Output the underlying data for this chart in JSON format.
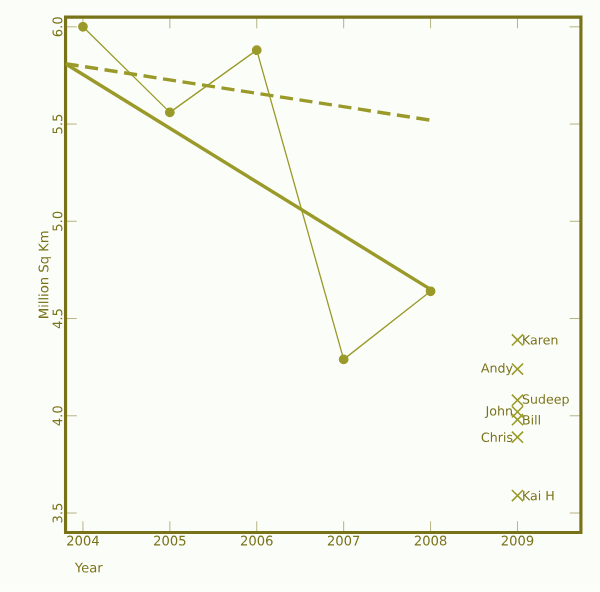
{
  "chart_data": {
    "type": "line",
    "xlabel": "Year",
    "ylabel": "Million Sq Km",
    "xlim": [
      2003.8,
      2009.73
    ],
    "ylim": [
      3.4,
      6.05
    ],
    "xticks": [
      2004,
      2005,
      2006,
      2007,
      2008,
      2009
    ],
    "yticks": [
      {
        "value": 3.5,
        "label": "3.5"
      },
      {
        "value": 4.0,
        "label": "4.0"
      },
      {
        "value": 4.5,
        "label": "4.5"
      },
      {
        "value": 5.0,
        "label": "5.0"
      },
      {
        "value": 5.5,
        "label": "5.5"
      },
      {
        "value": 6.0,
        "label": "6.0"
      }
    ],
    "grid": false,
    "legend": false,
    "series": [
      {
        "type": "line",
        "color": "#9a9a2a",
        "x": [
          2004,
          2005,
          2006,
          2007,
          2008
        ],
        "values": [
          6.0,
          5.56,
          5.88,
          4.29,
          4.64
        ],
        "marker": "circle",
        "line_style": "solid"
      },
      {
        "type": "line",
        "color": "#9a9a2a",
        "x": [
          2003.8,
          2008
        ],
        "values": [
          5.81,
          4.65
        ],
        "marker": "none",
        "line_style": "solid"
      },
      {
        "type": "line",
        "color": "#9a9a2a",
        "x": [
          2003.8,
          2008
        ],
        "values": [
          5.81,
          5.52
        ],
        "marker": "none",
        "line_style": "dashed"
      },
      {
        "type": "scatter",
        "name": "Karen",
        "color": "#9a9a2a",
        "x": [
          2009
        ],
        "values": [
          4.39
        ],
        "marker": "cross"
      },
      {
        "type": "scatter",
        "name": "Andy",
        "color": "#9a9a2a",
        "x": [
          2009
        ],
        "values": [
          4.24
        ],
        "marker": "cross"
      },
      {
        "type": "scatter",
        "name": "Sudeep",
        "color": "#9a9a2a",
        "x": [
          2009
        ],
        "values": [
          4.08
        ],
        "marker": "cross"
      },
      {
        "type": "scatter",
        "name": "John",
        "color": "#9a9a2a",
        "x": [
          2009
        ],
        "values": [
          4.02
        ],
        "marker": "cross"
      },
      {
        "type": "scatter",
        "name": "Bill",
        "color": "#9a9a2a",
        "x": [
          2009
        ],
        "values": [
          3.98
        ],
        "marker": "cross"
      },
      {
        "type": "scatter",
        "name": "Chris",
        "color": "#9a9a2a",
        "x": [
          2009
        ],
        "values": [
          3.89
        ],
        "marker": "cross"
      },
      {
        "type": "scatter",
        "name": "Kai H",
        "color": "#9a9a2a",
        "x": [
          2009
        ],
        "values": [
          3.59
        ],
        "marker": "cross"
      }
    ]
  }
}
